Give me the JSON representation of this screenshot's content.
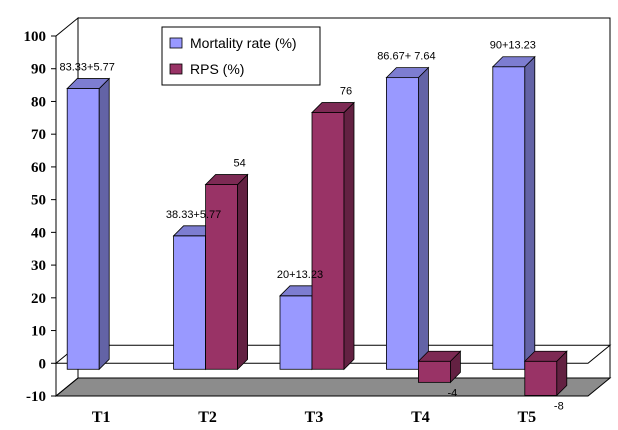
{
  "chart_data": {
    "type": "bar",
    "categories": [
      "T1",
      "T2",
      "T3",
      "T4",
      "T5"
    ],
    "series": [
      {
        "name": "Mortality rate (%)",
        "color": "#9999ff",
        "values": [
          83.33,
          38.33,
          20,
          86.67,
          90
        ],
        "labels": [
          "83.33+5.77",
          "38.33+5.77",
          "20+13.23",
          "86.67+ 7.64",
          "90+13.23"
        ]
      },
      {
        "name": "RPS (%)",
        "color": "#993366",
        "values": [
          null,
          54,
          76,
          -4,
          -8
        ],
        "labels": [
          "",
          "54",
          "76",
          "-4",
          "-8"
        ]
      }
    ],
    "yticks": [
      "100",
      "90",
      "80",
      "70",
      "60",
      "50",
      "40",
      "30",
      "20",
      "10",
      "0",
      "-10"
    ],
    "ylim": [
      -10,
      100
    ],
    "title": "",
    "xlabel": "",
    "ylabel": "",
    "legend_position": "top-center",
    "grid": false,
    "view": "3d"
  }
}
